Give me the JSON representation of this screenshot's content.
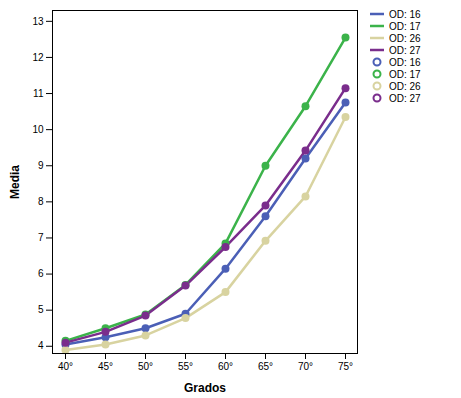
{
  "chart_data": {
    "type": "line",
    "x_label": "Grados",
    "y_label": "Media",
    "categories": [
      "40°",
      "45°",
      "50°",
      "55°",
      "60°",
      "65°",
      "70°",
      "75°"
    ],
    "series": [
      {
        "name": "OD: 16",
        "color": "#4b5fb6",
        "values": [
          4.05,
          4.25,
          4.5,
          4.9,
          6.15,
          7.6,
          9.2,
          10.75
        ]
      },
      {
        "name": "OD: 17",
        "color": "#3bb34a",
        "values": [
          4.15,
          4.5,
          4.88,
          5.7,
          6.85,
          9.0,
          10.65,
          12.55
        ]
      },
      {
        "name": "OD: 26",
        "color": "#d8d3a0",
        "values": [
          3.9,
          4.05,
          4.3,
          4.78,
          5.5,
          6.92,
          8.15,
          10.35
        ]
      },
      {
        "name": "OD: 27",
        "color": "#7a2d8c",
        "values": [
          4.1,
          4.4,
          4.85,
          5.68,
          6.75,
          7.9,
          9.42,
          11.15
        ]
      }
    ],
    "ylim": [
      3.8,
      13.3
    ],
    "yticks": [
      4,
      5,
      6,
      7,
      8,
      9,
      10,
      11,
      12,
      13
    ],
    "grid": false,
    "legend": "right",
    "marker": "circle"
  }
}
